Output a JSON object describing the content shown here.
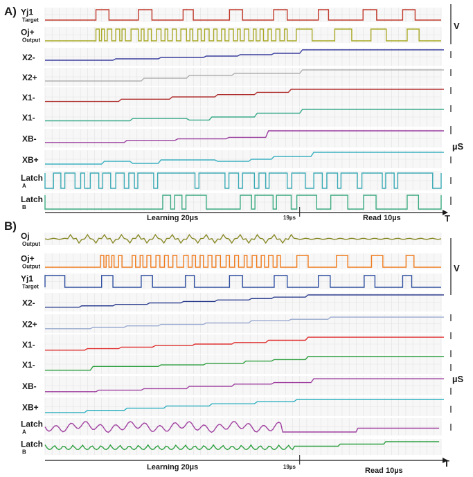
{
  "chart_data": [
    {
      "type": "line",
      "panel_label": "A)",
      "time_axis": {
        "learning_label": "Learning 20µs",
        "marker_label": "19µs",
        "read_label": "Read 10µs",
        "end_label": "T"
      },
      "units": {
        "voltage": "V",
        "current": "µS"
      },
      "series": [
        {
          "id": "yj1",
          "label": "Yj1",
          "sublabel": "Target",
          "color": "#c0392b",
          "kind": "pulse",
          "high": [
            [
              9.0,
              11.3
            ],
            [
              16.5,
              18.9
            ],
            [
              24.4,
              26.2
            ],
            [
              32.6,
              34.9
            ],
            [
              40.4,
              42.8
            ],
            [
              48.3,
              50.1
            ],
            [
              56.2,
              58.6
            ],
            [
              63.2,
              65.4
            ]
          ]
        },
        {
          "id": "oj-plus",
          "label": "Oj+",
          "sublabel": "Output",
          "color": "#a8a825",
          "kind": "pulse",
          "high": [
            [
              9.0,
              9.6
            ],
            [
              10.0,
              10.5
            ],
            [
              11.0,
              11.8
            ],
            [
              12.5,
              13.2
            ],
            [
              13.6,
              14.2
            ],
            [
              15.2,
              16.5
            ],
            [
              17.0,
              17.5
            ],
            [
              18.2,
              18.8
            ],
            [
              19.7,
              20.5
            ],
            [
              21.2,
              21.7
            ],
            [
              22.5,
              23.2
            ],
            [
              24.0,
              25.0
            ],
            [
              25.6,
              26.1
            ],
            [
              27.0,
              27.6
            ],
            [
              28.2,
              29.0
            ],
            [
              29.8,
              30.4
            ],
            [
              31.2,
              31.8
            ],
            [
              32.5,
              33.3
            ],
            [
              34.0,
              34.5
            ],
            [
              35.2,
              36.0
            ],
            [
              36.8,
              37.3
            ],
            [
              38.0,
              38.6
            ],
            [
              39.4,
              40.0
            ],
            [
              40.8,
              41.5
            ],
            [
              42.3,
              42.8
            ],
            [
              44.4,
              47.2
            ],
            [
              51.2,
              54.2
            ],
            [
              57.6,
              60.3
            ],
            [
              64.0,
              66.1
            ]
          ]
        },
        {
          "id": "x2-minus",
          "label": "X2-",
          "color": "#3a3f9e",
          "kind": "staircase",
          "steps": [
            [
              0,
              0.25
            ],
            [
              12,
              0.35
            ],
            [
              20,
              0.45
            ],
            [
              28,
              0.55
            ],
            [
              34,
              0.65
            ],
            [
              40,
              0.75
            ],
            [
              45,
              1.0
            ],
            [
              70,
              1.0
            ]
          ]
        },
        {
          "id": "x2-plus",
          "label": "X2+",
          "color": "#b0b0b0",
          "kind": "staircase",
          "steps": [
            [
              0,
              0.2
            ],
            [
              17,
              0.4
            ],
            [
              25,
              0.6
            ],
            [
              33,
              0.75
            ],
            [
              45,
              1.0
            ],
            [
              70,
              1.0
            ]
          ]
        },
        {
          "id": "x1-minus-a",
          "label": "X1-",
          "color": "#b03030",
          "kind": "staircase",
          "steps": [
            [
              0,
              0.2
            ],
            [
              13,
              0.35
            ],
            [
              22,
              0.5
            ],
            [
              30,
              0.65
            ],
            [
              37,
              0.8
            ],
            [
              43,
              1.0
            ],
            [
              70,
              1.0
            ]
          ]
        },
        {
          "id": "x1-minus-b",
          "label": "X1-",
          "color": "#3aaa8a",
          "kind": "staircase",
          "steps": [
            [
              0,
              0.25
            ],
            [
              15,
              0.4
            ],
            [
              25,
              0.3
            ],
            [
              29,
              0.5
            ],
            [
              37,
              0.75
            ],
            [
              45,
              1.0
            ],
            [
              70,
              1.0
            ]
          ]
        },
        {
          "id": "xb-minus",
          "label": "XB-",
          "color": "#9b3fa0",
          "kind": "staircase",
          "steps": [
            [
              0,
              0.2
            ],
            [
              14,
              0.35
            ],
            [
              23,
              0.45
            ],
            [
              32,
              0.55
            ],
            [
              39,
              1.0
            ],
            [
              70,
              1.0
            ]
          ]
        },
        {
          "id": "xb-plus",
          "label": "XB+",
          "color": "#3ab0c0",
          "kind": "staircase",
          "steps": [
            [
              0,
              0.15
            ],
            [
              10,
              0.35
            ],
            [
              15,
              0.2
            ],
            [
              20,
              0.45
            ],
            [
              30,
              0.35
            ],
            [
              36,
              0.5
            ],
            [
              40,
              0.7
            ],
            [
              47,
              1.0
            ],
            [
              70,
              1.0
            ]
          ]
        },
        {
          "id": "latch-a",
          "label": "Latch",
          "sublabel": "A",
          "color": "#3aaab5",
          "kind": "pulse",
          "inverted": true,
          "high": [
            [
              0,
              1.5
            ],
            [
              2.8,
              3.5
            ],
            [
              5.3,
              6.3
            ],
            [
              7.0,
              8.0
            ],
            [
              9.5,
              10.2
            ],
            [
              11.6,
              12.5
            ],
            [
              14.0,
              14.8
            ],
            [
              15.8,
              16.4
            ],
            [
              19.2,
              19.9
            ],
            [
              26.5,
              27.2
            ],
            [
              31.8,
              32.5
            ],
            [
              34.2,
              34.9
            ],
            [
              37.0,
              37.8
            ],
            [
              39.0,
              39.6
            ],
            [
              42.8,
              43.6
            ],
            [
              46.0,
              47.5
            ],
            [
              49.0,
              49.8
            ],
            [
              51.7,
              52.3
            ],
            [
              55.2,
              56.0
            ],
            [
              59.6,
              60.2
            ],
            [
              61.7,
              62.3
            ],
            [
              68.5,
              70.0
            ]
          ]
        },
        {
          "id": "latch-b",
          "label": "Latch",
          "sublabel": "B",
          "color": "#3aaa80",
          "kind": "pulse",
          "inverted": true,
          "high": [
            [
              0,
              20.8
            ],
            [
              22.2,
              22.9
            ],
            [
              24.2,
              24.9
            ],
            [
              28.5,
              34.5
            ],
            [
              36.5,
              37.1
            ],
            [
              40.3,
              40.9
            ],
            [
              43.5,
              44.5
            ],
            [
              48.0,
              50.5
            ],
            [
              53.5,
              56.3
            ],
            [
              58.5,
              64.0
            ],
            [
              66.0,
              70.0
            ]
          ]
        }
      ]
    },
    {
      "type": "line",
      "panel_label": "B)",
      "time_axis": {
        "learning_label": "Learning 20µs",
        "marker_label": "19µs",
        "read_label": "Read 10µs",
        "end_label": "T"
      },
      "units": {
        "voltage": "V",
        "current": "µS"
      },
      "series": [
        {
          "id": "oj",
          "label": "Oj",
          "sublabel": "Output",
          "color": "#8a8a2a",
          "kind": "spikes"
        },
        {
          "id": "oj-plus-b",
          "label": "Oj+",
          "sublabel": "Output",
          "color": "#f07a1a",
          "kind": "pulse",
          "high": [
            [
              9.8,
              10.4
            ],
            [
              10.8,
              11.3
            ],
            [
              11.8,
              12.2
            ],
            [
              13.0,
              13.6
            ],
            [
              15.4,
              16.0
            ],
            [
              16.8,
              17.3
            ],
            [
              18.0,
              18.7
            ],
            [
              19.6,
              20.3
            ],
            [
              21.1,
              21.8
            ],
            [
              22.6,
              23.3
            ],
            [
              24.5,
              25.3
            ],
            [
              26.0,
              26.6
            ],
            [
              27.4,
              28.0
            ],
            [
              28.8,
              29.5
            ],
            [
              30.2,
              31.0
            ],
            [
              32.0,
              32.6
            ],
            [
              33.5,
              34.2
            ],
            [
              35.2,
              35.7
            ],
            [
              36.6,
              37.4
            ],
            [
              38.2,
              38.8
            ],
            [
              39.5,
              40.3
            ],
            [
              41.0,
              41.6
            ],
            [
              44.5,
              46.5
            ],
            [
              51.5,
              53.5
            ],
            [
              57.7,
              59.7
            ],
            [
              63.8,
              65.2
            ]
          ]
        },
        {
          "id": "yj1-b",
          "label": "Yj1",
          "sublabel": "Target",
          "color": "#2e4fa0",
          "kind": "pulse",
          "high": [
            [
              0,
              3.5
            ],
            [
              10.0,
              12.0
            ],
            [
              17.0,
              19.0
            ],
            [
              24.8,
              26.4
            ],
            [
              32.6,
              34.9
            ],
            [
              40.5,
              42.8
            ],
            [
              48.3,
              50.4
            ],
            [
              56.4,
              58.3
            ],
            [
              63.2,
              64.8
            ]
          ]
        },
        {
          "id": "x2-minus-b",
          "label": "X2-",
          "color": "#2e3f90",
          "kind": "staircase",
          "steps": [
            [
              0,
              0.15
            ],
            [
              6,
              0.25
            ],
            [
              12,
              0.35
            ],
            [
              18,
              0.45
            ],
            [
              24,
              0.55
            ],
            [
              30,
              0.65
            ],
            [
              36,
              0.75
            ],
            [
              40,
              0.85
            ],
            [
              46,
              1.0
            ],
            [
              70,
              1.0
            ]
          ]
        },
        {
          "id": "x2-plus-b",
          "label": "X2+",
          "color": "#9aaad0",
          "kind": "staircase",
          "steps": [
            [
              0,
              0.15
            ],
            [
              8,
              0.25
            ],
            [
              14,
              0.35
            ],
            [
              20,
              0.45
            ],
            [
              28,
              0.55
            ],
            [
              36,
              0.7
            ],
            [
              43,
              0.8
            ],
            [
              50,
              0.95
            ],
            [
              70,
              0.95
            ]
          ]
        },
        {
          "id": "x1-minus-c",
          "label": "X1-",
          "color": "#e03030",
          "kind": "staircase",
          "steps": [
            [
              0,
              0.1
            ],
            [
              7,
              0.2
            ],
            [
              13,
              0.3
            ],
            [
              19,
              0.4
            ],
            [
              26,
              0.5
            ],
            [
              33,
              0.6
            ],
            [
              39,
              0.75
            ],
            [
              46,
              0.95
            ],
            [
              70,
              0.95
            ]
          ]
        },
        {
          "id": "x1-minus-d",
          "label": "X1-",
          "color": "#2ea040",
          "kind": "staircase",
          "steps": [
            [
              0,
              0.1
            ],
            [
              8,
              0.35
            ],
            [
              20,
              0.45
            ],
            [
              28,
              0.55
            ],
            [
              35,
              0.7
            ],
            [
              40,
              0.8
            ],
            [
              46,
              1.0
            ],
            [
              70,
              1.0
            ]
          ]
        },
        {
          "id": "xb-minus-b",
          "label": "XB-",
          "color": "#a040a0",
          "kind": "staircase",
          "steps": [
            [
              0,
              0.1
            ],
            [
              9,
              0.2
            ],
            [
              17,
              0.3
            ],
            [
              25,
              0.45
            ],
            [
              33,
              0.6
            ],
            [
              40,
              0.7
            ],
            [
              47,
              0.95
            ],
            [
              70,
              0.95
            ]
          ]
        },
        {
          "id": "xb-plus-b",
          "label": "XB+",
          "color": "#2eb0c0",
          "kind": "staircase",
          "steps": [
            [
              0,
              0.1
            ],
            [
              7,
              0.25
            ],
            [
              14,
              0.4
            ],
            [
              21,
              0.55
            ],
            [
              29,
              0.7
            ],
            [
              37,
              0.85
            ],
            [
              44,
              1.0
            ],
            [
              70,
              1.0
            ]
          ]
        },
        {
          "id": "latch-a-b",
          "label": "Latch",
          "sublabel": "A",
          "color": "#a040a0",
          "kind": "wiggle"
        },
        {
          "id": "latch-b-b",
          "label": "Latch",
          "sublabel": "B",
          "color": "#2ea040",
          "kind": "wiggle2"
        }
      ]
    }
  ]
}
